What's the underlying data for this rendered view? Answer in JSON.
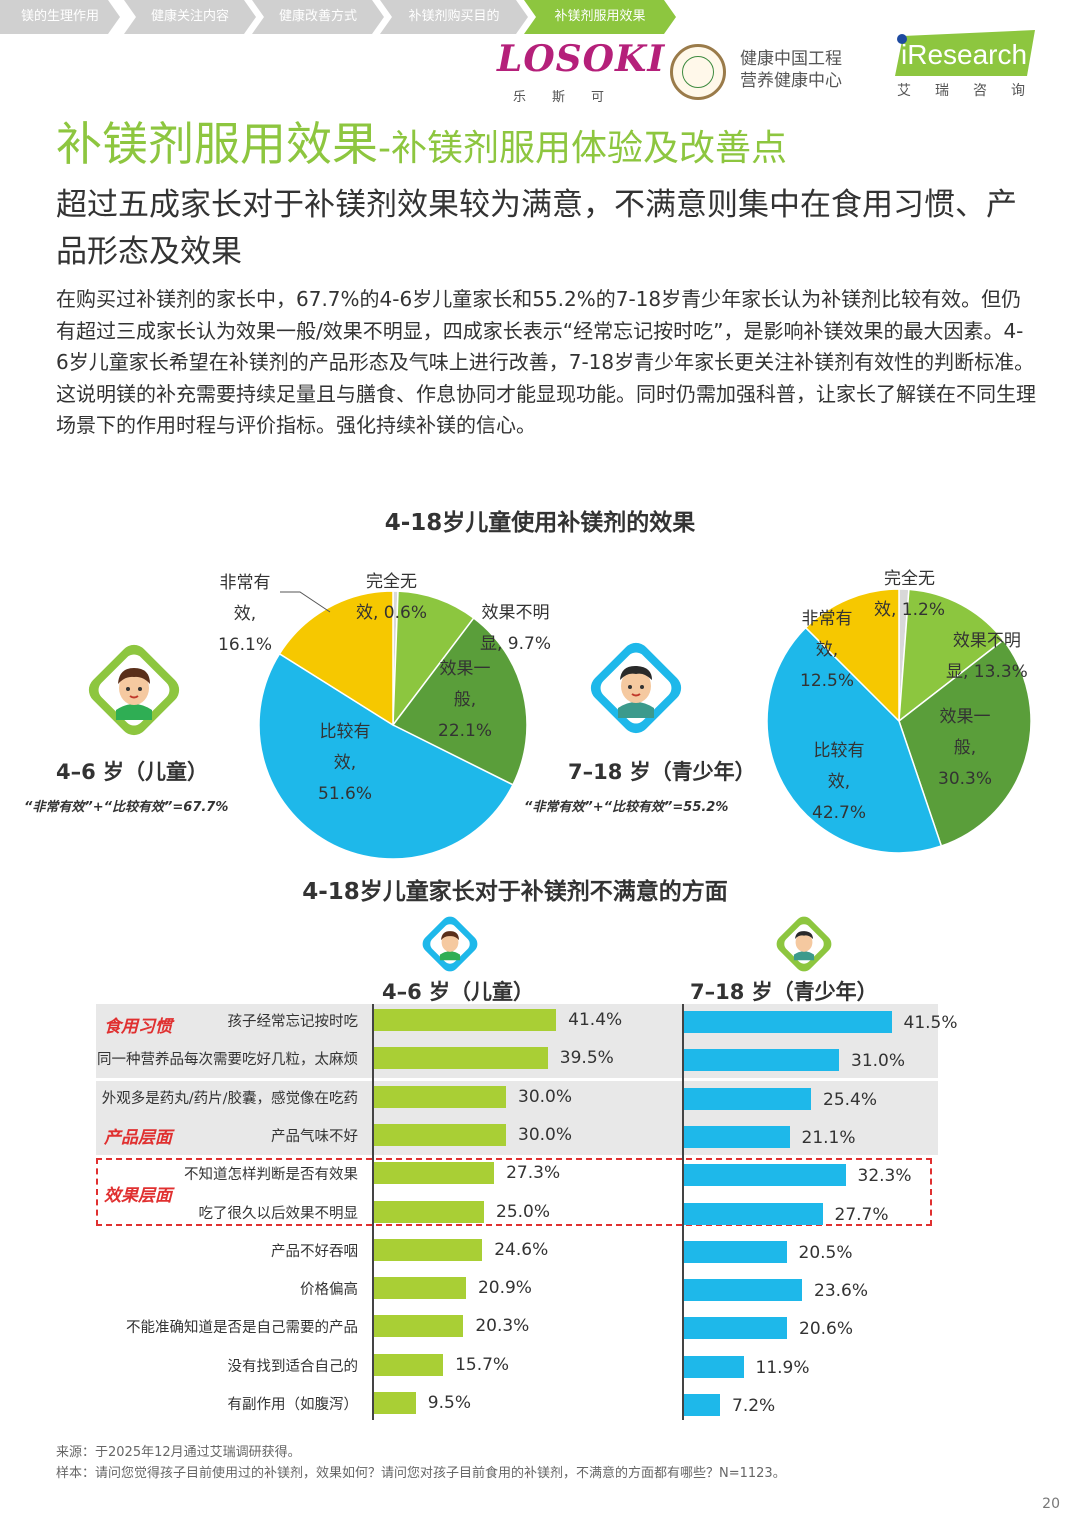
{
  "breadcrumb": [
    "镁的生理作用",
    "健康关注内容",
    "健康改善方式",
    "补镁剂购买目的",
    "补镁剂服用效果"
  ],
  "logos": {
    "losoki": "LOSOKI",
    "losoki_sub": "乐斯可",
    "health_center": [
      "健康中国工程",
      "营养健康中心"
    ],
    "iresearch": "iResearch",
    "iresearch_sub": "艾瑞咨询"
  },
  "title": "补镁剂服用效果",
  "title_sub": "-补镁剂服用体验及改善点",
  "subtitle": "超过五成家长对于补镁剂效果较为满意，不满意则集中在食用习惯、产品形态及效果",
  "paragraph": "在购买过补镁剂的家长中，67.7%的4-6岁儿童家长和55.2%的7-18岁青少年家长认为补镁剂比较有效。但仍有超过三成家长认为效果一般/效果不明显，四成家长表示“经常忘记按时吃”，是影响补镁效果的最大因素。4-6岁儿童家长希望在补镁剂的产品形态及气味上进行改善，7-18岁青少年家长更关注补镁剂有效性的判断标准。这说明镁的补充需要持续足量且与膳食、作息协同才能显现功能。同时仍需加强科普，让家长了解镁在不同生理场景下的作用时程与评价指标。强化持续补镁的信心。",
  "groups": {
    "child": "4–6 岁（儿童）",
    "teen": "7–18 岁（青少年）",
    "child_formula": "“非常有效”+“比较有效”=67.7%",
    "teen_formula": "“非常有效”+“比较有效”=55.2%"
  },
  "colors": {
    "green_title": "#8dc63f",
    "crumb_gray": "#d0d0d0",
    "crumb_active": "#8dc63f",
    "pie_very": "#f6c800",
    "pie_fairly": "#1eb8ea",
    "pie_average": "#5a9e3a",
    "pie_unclear": "#8cc63f",
    "pie_none": "#d8d8d8",
    "bar_child": "#a9cf35",
    "bar_teen": "#1eb8ea",
    "tag_red": "#e03030"
  },
  "chart_data": [
    {
      "type": "pie",
      "title": "4-18岁儿童使用补镁剂的效果",
      "group": "4–6 岁（儿童）",
      "slices": [
        {
          "label": "完全无效",
          "value": 0.6
        },
        {
          "label": "效果不明显",
          "value": 9.7
        },
        {
          "label": "效果一般",
          "value": 22.1
        },
        {
          "label": "比较有效",
          "value": 51.6
        },
        {
          "label": "非常有效",
          "value": 16.1
        }
      ],
      "display_labels": [
        "完全无\n效, 0.6%",
        "效果不明\n显, 9.7%",
        "效果一\n般,\n22.1%",
        "比较有\n效,\n51.6%",
        "非常有\n效,\n16.1%"
      ]
    },
    {
      "type": "pie",
      "title": "4-18岁儿童使用补镁剂的效果",
      "group": "7–18 岁（青少年）",
      "slices": [
        {
          "label": "完全无效",
          "value": 1.2
        },
        {
          "label": "效果不明显",
          "value": 13.3
        },
        {
          "label": "效果一般",
          "value": 30.3
        },
        {
          "label": "比较有效",
          "value": 42.7
        },
        {
          "label": "非常有效",
          "value": 12.5
        }
      ],
      "display_labels": [
        "完全无\n效, 1.2%",
        "效果不明\n显, 13.3%",
        "效果一\n般,\n30.3%",
        "比较有\n效,\n42.7%",
        "非常有\n效,\n12.5%"
      ]
    },
    {
      "type": "bar",
      "title": "4-18岁儿童家长对于补镁剂不满意的方面",
      "categories": [
        "孩子经常忘记按时吃",
        "同一种营养品每次需要吃好几粒，太麻烦",
        "外观多是药丸/药片/胶囊，感觉像在吃药",
        "产品气味不好",
        "不知道怎样判断是否有效果",
        "吃了很久以后效果不明显",
        "产品不好吞咽",
        "价格偏高",
        "不能准确知道是否是自己需要的产品",
        "没有找到适合自己的",
        "有副作用（如腹泻）"
      ],
      "series": [
        {
          "name": "4–6 岁（儿童）",
          "values": [
            41.4,
            39.5,
            30.0,
            30.0,
            27.3,
            25.0,
            24.6,
            20.9,
            20.3,
            15.7,
            9.5
          ]
        },
        {
          "name": "7–18 岁（青少年）",
          "values": [
            41.5,
            31.0,
            25.4,
            21.1,
            32.3,
            27.7,
            20.5,
            23.6,
            20.6,
            11.9,
            7.2
          ]
        }
      ],
      "group_tags": [
        "食用习惯",
        "产品层面",
        "效果层面"
      ]
    }
  ],
  "footnote": {
    "source": "来源：于2025年12月通过艾瑞调研获得。",
    "sample": "样本：请问您觉得孩子目前使用过的补镁剂，效果如何？请问您对孩子目前食用的补镁剂，不满意的方面都有哪些？N=1123。"
  },
  "page_number": "20"
}
